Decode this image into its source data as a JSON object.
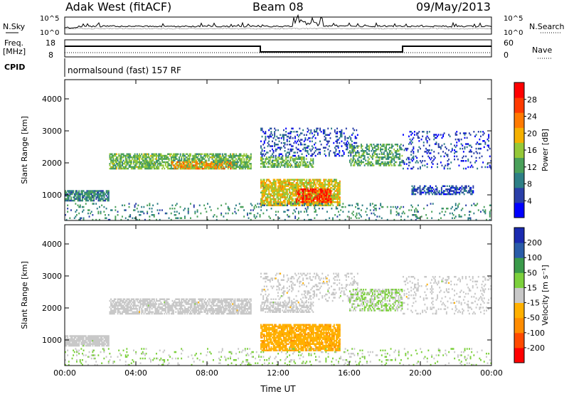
{
  "header": {
    "station": "Adak West (fitACF)",
    "beam": "Beam 08",
    "date": "09/May/2013"
  },
  "noise_panel": {
    "left_label": "N.Sky",
    "right_label": "N.Search",
    "left_ticks": [
      "10^5",
      "10^0"
    ],
    "right_ticks": [
      "10^5",
      "10^0"
    ]
  },
  "freq_panel": {
    "left_label_1": "Freq.",
    "left_label_2": "[MHz]",
    "right_label": "Nave",
    "left_ticks": [
      "18",
      "8"
    ],
    "right_ticks": [
      "60",
      "0"
    ]
  },
  "cpid": {
    "label": "CPID",
    "program": "normalsound (fast) 157 RF"
  },
  "colors": {
    "power": [
      "#0000ff",
      "#2a3fa8",
      "#2e7f86",
      "#4aa05a",
      "#95c838",
      "#f5b000",
      "#ff7a00",
      "#ff3a00",
      "#ff0000"
    ],
    "velocity": [
      "#ff0000",
      "#ff4a00",
      "#ff8c00",
      "#ffb000",
      "#c8c8c8",
      "#7cd03c",
      "#3a9a4a",
      "#2a5ca8",
      "#1a2ab0"
    ]
  },
  "chart_data": [
    {
      "type": "heatmap",
      "title": "Power",
      "xlabel": "Time UT",
      "ylabel": "Slant Range [km]",
      "y_ticks": [
        1000,
        2000,
        3000,
        4000
      ],
      "ylim": [
        200,
        4600
      ],
      "x_ticks": [
        "00:00",
        "04:00",
        "08:00",
        "12:00",
        "16:00",
        "20:00",
        "00:00"
      ],
      "xlim_hours": [
        0,
        24
      ],
      "colorbar_label": "Power [dB]",
      "colorbar_ticks": [
        "28",
        "24",
        "20",
        "16",
        "12",
        "8",
        "4"
      ],
      "colorbar_range": [
        0,
        32
      ],
      "regions": [
        {
          "t0": 0.0,
          "t1": 2.5,
          "r0": 800,
          "r1": 1150,
          "level": 10,
          "density": 0.85
        },
        {
          "t0": 2.5,
          "t1": 10.5,
          "r0": 1800,
          "r1": 2300,
          "level": 14,
          "density": 0.7
        },
        {
          "t0": 6.0,
          "t1": 9.5,
          "r0": 1800,
          "r1": 2050,
          "level": 22,
          "density": 0.45
        },
        {
          "t0": 11.0,
          "t1": 15.5,
          "r0": 650,
          "r1": 1500,
          "level": 18,
          "density": 0.8
        },
        {
          "t0": 13.0,
          "t1": 15.0,
          "r0": 750,
          "r1": 1200,
          "level": 28,
          "density": 0.55
        },
        {
          "t0": 11.0,
          "t1": 14.0,
          "r0": 1850,
          "r1": 2200,
          "level": 14,
          "density": 0.6
        },
        {
          "t0": 11.0,
          "t1": 16.5,
          "r0": 2200,
          "r1": 3100,
          "level": 6,
          "density": 0.25
        },
        {
          "t0": 16.0,
          "t1": 19.0,
          "r0": 1900,
          "r1": 2600,
          "level": 12,
          "density": 0.5
        },
        {
          "t0": 19.0,
          "t1": 24.0,
          "r0": 1800,
          "r1": 3000,
          "level": 5,
          "density": 0.15
        },
        {
          "t0": 19.5,
          "t1": 23.0,
          "r0": 1000,
          "r1": 1300,
          "level": 6,
          "density": 0.5
        },
        {
          "t0": 0.0,
          "t1": 24.0,
          "r0": 200,
          "r1": 750,
          "level": 10,
          "density": 0.12
        }
      ]
    },
    {
      "type": "heatmap",
      "title": "Velocity",
      "xlabel": "Time UT",
      "ylabel": "Slant Range [km]",
      "y_ticks": [
        1000,
        2000,
        3000,
        4000
      ],
      "ylim": [
        200,
        4600
      ],
      "x_ticks": [
        "00:00",
        "04:00",
        "08:00",
        "12:00",
        "16:00",
        "20:00",
        "00:00"
      ],
      "xlim_hours": [
        0,
        24
      ],
      "colorbar_label": "Velocity [m s⁻¹]",
      "colorbar_ticks": [
        "200",
        "100",
        "50",
        "15",
        "-15",
        "-50",
        "-100",
        "-200"
      ],
      "colorbar_range": [
        -250,
        250
      ],
      "regions": [
        {
          "t0": 0.0,
          "t1": 2.5,
          "r0": 800,
          "r1": 1150,
          "level": 0,
          "density": 0.85
        },
        {
          "t0": 2.5,
          "t1": 10.5,
          "r0": 1800,
          "r1": 2300,
          "level": 0,
          "density": 0.7
        },
        {
          "t0": 11.0,
          "t1": 15.5,
          "r0": 650,
          "r1": 1500,
          "level": -60,
          "density": 0.8
        },
        {
          "t0": 11.0,
          "t1": 14.0,
          "r0": 1850,
          "r1": 2200,
          "level": 0,
          "density": 0.6
        },
        {
          "t0": 11.0,
          "t1": 16.5,
          "r0": 2200,
          "r1": 3100,
          "level": 0,
          "density": 0.2
        },
        {
          "t0": 16.0,
          "t1": 19.0,
          "r0": 1900,
          "r1": 2600,
          "level": 30,
          "density": 0.5
        },
        {
          "t0": 19.0,
          "t1": 24.0,
          "r0": 1800,
          "r1": 3000,
          "level": 0,
          "density": 0.15
        },
        {
          "t0": 0.0,
          "t1": 24.0,
          "r0": 200,
          "r1": 750,
          "level": 30,
          "density": 0.12
        }
      ]
    }
  ]
}
